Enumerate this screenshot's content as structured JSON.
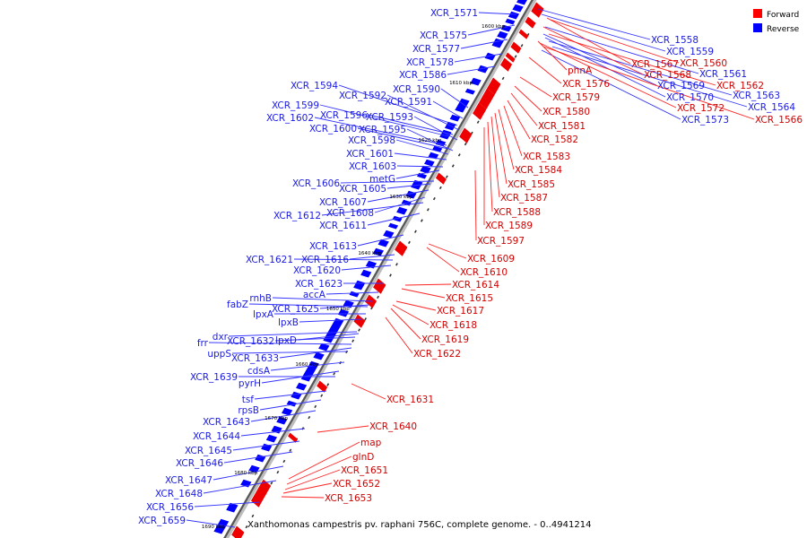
{
  "caption": "Xanthomonas campestris pv. raphani 756C, complete genome. - 0..4941214",
  "legend": {
    "forward_label": "Forward",
    "reverse_label": "Reverse",
    "forward_color": "#ff0000",
    "reverse_color": "#0000ff"
  },
  "kbp_ticks": [
    "1600 kbp",
    "1610 kbp",
    "1620 kbp",
    "1630 kbp",
    "1640 kbp",
    "1650 kbp",
    "1660 kbp",
    "1670 kbp",
    "1680 kbp",
    "1690 kbp"
  ],
  "reverse_genes": [
    "XCR_1558",
    "XCR_1559",
    "XCR_1561",
    "XCR_1563",
    "XCR_1564",
    "XCR_1569",
    "XCR_1570",
    "XCR_1573",
    "XCR_1571",
    "XCR_1575",
    "XCR_1577",
    "XCR_1578",
    "XCR_1586",
    "XCR_1590",
    "XCR_1591",
    "XCR_1594",
    "XCR_1592",
    "XCR_1599",
    "XCR_1596",
    "XCR_1593",
    "XCR_1602",
    "XCR_1600",
    "XCR_1595",
    "XCR_1598",
    "XCR_1601",
    "XCR_1603",
    "metG",
    "XCR_1606",
    "XCR_1605",
    "XCR_1607",
    "XCR_1612",
    "XCR_1608",
    "XCR_1611",
    "XCR_1613",
    "XCR_1621",
    "XCR_1616",
    "XCR_1620",
    "XCR_1623",
    "accA",
    "rnhB",
    "fabZ",
    "XCR_1625",
    "lpxA",
    "lpxB",
    "dxr",
    "XCR_1632",
    "lpxD",
    "frr",
    "uppS",
    "XCR_1633",
    "cdsA",
    "XCR_1639",
    "pyrH",
    "tsf",
    "rpsB",
    "XCR_1643",
    "XCR_1644",
    "XCR_1645",
    "XCR_1646",
    "XCR_1647",
    "XCR_1648",
    "XCR_1656",
    "XCR_1659"
  ],
  "forward_genes": [
    "XCR_1567",
    "XCR_1560",
    "XCR_1568",
    "XCR_1562",
    "XCR_1572",
    "XCR_1566",
    "phnA",
    "XCR_1576",
    "XCR_1579",
    "XCR_1580",
    "XCR_1581",
    "XCR_1582",
    "XCR_1583",
    "XCR_1584",
    "XCR_1585",
    "XCR_1587",
    "XCR_1588",
    "XCR_1589",
    "XCR_1597",
    "XCR_1609",
    "XCR_1610",
    "XCR_1614",
    "XCR_1615",
    "XCR_1617",
    "XCR_1618",
    "XCR_1619",
    "XCR_1622",
    "XCR_1631",
    "XCR_1640",
    "map",
    "glnD",
    "XCR_1651",
    "XCR_1652",
    "XCR_1653"
  ]
}
